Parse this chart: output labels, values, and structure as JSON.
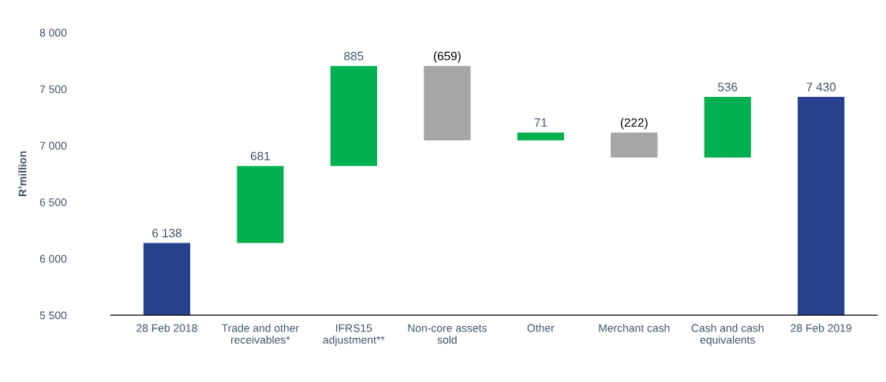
{
  "chart_data": {
    "type": "bar",
    "ylabel": "R’million",
    "categories": [
      "28 Feb 2018",
      "Trade and other\nreceivables*",
      "IFRS15\nadjustment**",
      "Non-core assets\nsold",
      "Other",
      "Merchant cash",
      "Cash and cash\nequivalents",
      "28 Feb 2019"
    ],
    "values": [
      6138,
      681,
      885,
      -659,
      71,
      -222,
      536,
      7430
    ],
    "base": [
      null,
      6138,
      6819,
      7704,
      7045,
      7116,
      6894,
      null
    ],
    "colors": [
      "#27418e",
      "#00b050",
      "#00b050",
      "#a6a6a6",
      "#00b050",
      "#a6a6a6",
      "#00b050",
      "#27418e"
    ],
    "value_labels": [
      "6 138",
      "681",
      "885",
      "(659)",
      "71",
      "(222)",
      "536",
      "7 430"
    ],
    "ylim": [
      5500,
      8000
    ],
    "yticks": [
      {
        "value": 5500,
        "label": "5 500"
      },
      {
        "value": 6000,
        "label": "6 000"
      },
      {
        "value": 6500,
        "label": "6 500"
      },
      {
        "value": 7000,
        "label": "7 000"
      },
      {
        "value": 7500,
        "label": "7 500"
      },
      {
        "value": 8000,
        "label": "8 000"
      }
    ],
    "grid": false,
    "legend": false
  }
}
